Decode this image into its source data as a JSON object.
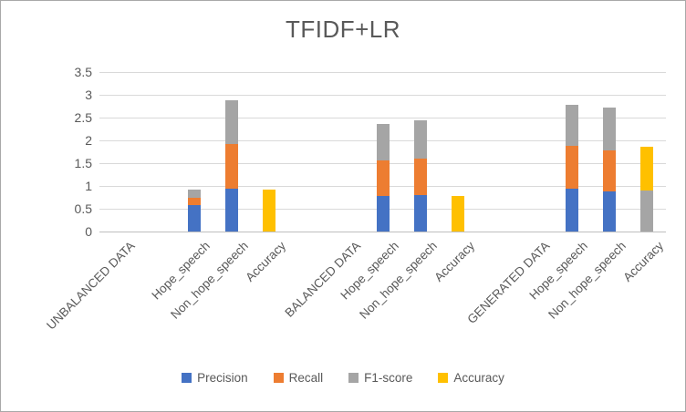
{
  "chart_data": {
    "type": "bar",
    "stacked": true,
    "title": "TFIDF+LR",
    "categories": [
      "UNBALANCED DATA",
      "Hope_speech",
      "Non_hope_speech",
      "Accuracy",
      "BALANCED DATA",
      "Hope_speech",
      "Non_hope_speech",
      "Accuracy",
      "GENERATED DATA",
      "Hope_speech",
      "Non_hope_speech",
      "Accuracy"
    ],
    "series": [
      {
        "name": "Precision",
        "color": "#4472C4",
        "values": [
          0,
          0.59,
          0.95,
          0,
          0,
          0.79,
          0.81,
          0,
          0,
          0.95,
          0.88,
          0
        ]
      },
      {
        "name": "Recall",
        "color": "#ED7D31",
        "values": [
          0,
          0.15,
          0.97,
          0,
          0,
          0.77,
          0.8,
          0,
          0,
          0.94,
          0.9,
          0
        ]
      },
      {
        "name": "F1-score",
        "color": "#A5A5A5",
        "values": [
          0,
          0.18,
          0.96,
          0,
          0,
          0.8,
          0.83,
          0,
          0,
          0.89,
          0.94,
          0.9
        ]
      },
      {
        "name": "Accuracy",
        "color": "#FFC000",
        "values": [
          0,
          0,
          0,
          0.92,
          0,
          0,
          0,
          0.79,
          0,
          0,
          0,
          0.96
        ]
      }
    ],
    "ylim": [
      0,
      3.5
    ],
    "yticks": [
      0,
      0.5,
      1,
      1.5,
      2,
      2.5,
      3,
      3.5
    ],
    "xlabel": "",
    "ylabel": "",
    "grid": true,
    "legend_position": "bottom",
    "colors": {
      "title_text": "#595959",
      "axis_text": "#595959",
      "gridline": "#D9D9D9",
      "axis_line": "#BFBFBF",
      "frame_border": "#A9A9A9",
      "background": "#FFFFFF"
    }
  }
}
